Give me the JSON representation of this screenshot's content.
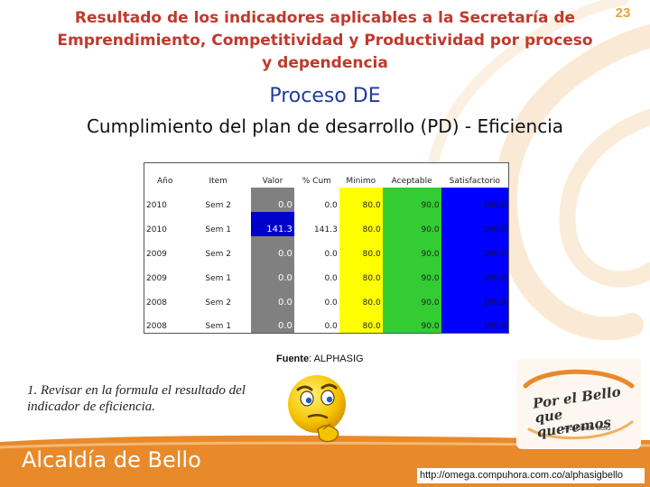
{
  "slide": {
    "number": "23",
    "title": "Resultado de los indicadores aplicables a la Secretaría de Emprendimiento, Competitividad y Productividad  por proceso y dependencia",
    "process": "Proceso DE",
    "subtitle": "Cumplimiento del plan de desarrollo (PD) - Eficiencia"
  },
  "table": {
    "headers": [
      "Año",
      "Item",
      "Valor",
      "% Cum",
      "Minimo",
      "Aceptable",
      "Satisfactorio"
    ],
    "rows": [
      {
        "anio": "2010",
        "item": "Sem 2",
        "valor": "0.0",
        "cum": "0.0",
        "min": "80.0",
        "ace": "90.0",
        "sat": "100.0"
      },
      {
        "anio": "2010",
        "item": "Sem 1",
        "valor": "141.3",
        "cum": "141.3",
        "min": "80.0",
        "ace": "90.0",
        "sat": "100.0"
      },
      {
        "anio": "2009",
        "item": "Sem 2",
        "valor": "0.0",
        "cum": "0.0",
        "min": "80.0",
        "ace": "90.0",
        "sat": "100.0"
      },
      {
        "anio": "2009",
        "item": "Sem 1",
        "valor": "0.0",
        "cum": "0.0",
        "min": "80.0",
        "ace": "90.0",
        "sat": "100.0"
      },
      {
        "anio": "2008",
        "item": "Sem 2",
        "valor": "0.0",
        "cum": "0.0",
        "min": "80.0",
        "ace": "90.0",
        "sat": "100.0"
      },
      {
        "anio": "2008",
        "item": "Sem 1",
        "valor": "0.0",
        "cum": "0.0",
        "min": "80.0",
        "ace": "90.0",
        "sat": "100.0"
      }
    ]
  },
  "source": {
    "label": "Fuente",
    "value": ": ALPHASIG"
  },
  "note": "1. Revisar en la formula el resultado del indicador de eficiencia.",
  "logo": {
    "line1": "Por el Bello",
    "line2": "que queremos",
    "sub": "Alcaldía de Bello"
  },
  "footer": {
    "brand": "Alcaldía de Bello",
    "url": "http://omega.compuhora.com.co/alphasigbello"
  },
  "colors": {
    "title": "#c0392b",
    "process": "#1f3d99",
    "minimo": "#ffff00",
    "aceptable": "#33cc33",
    "satisfactorio": "#0000ff",
    "valor_low": "#808080",
    "valor_high": "#0000cc",
    "footer": "#e8892a"
  },
  "icons": [
    "decorative-swirl",
    "thinking-face-icon",
    "por-el-bello-logo"
  ]
}
